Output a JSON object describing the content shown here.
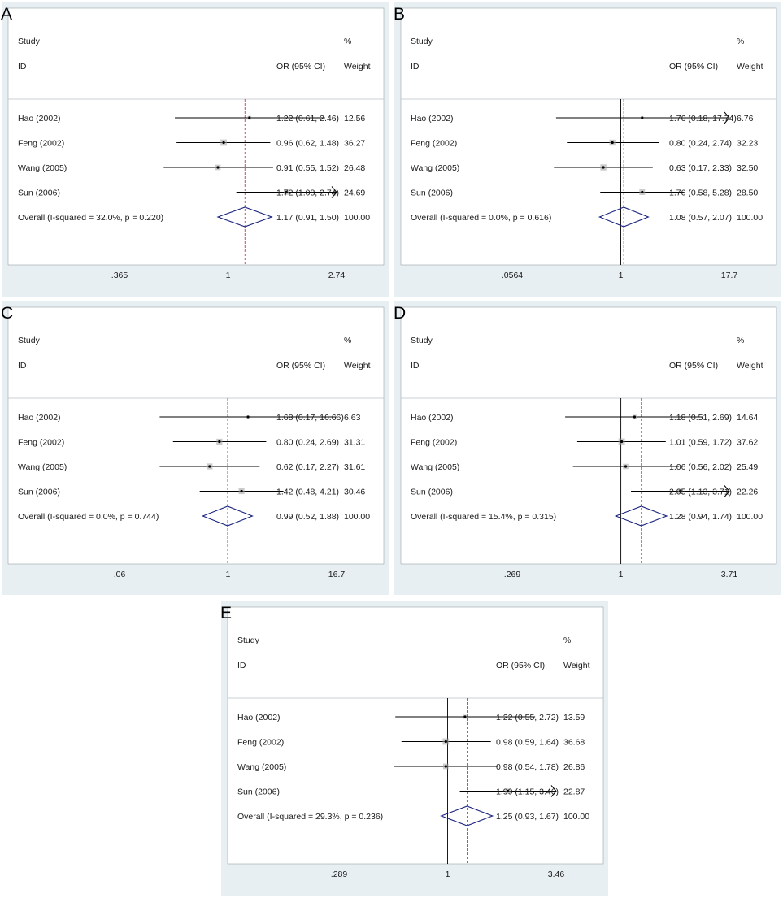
{
  "colors": {
    "panel_bg": "#e8eff2",
    "plot_bg": "#ffffff",
    "line": "#000000",
    "ref_line": "#c0506a",
    "diamond": "#1a237e",
    "box": "#a0a0a0"
  },
  "headers": {
    "study": "Study",
    "id": "ID",
    "or_ci": "OR (95% CI)",
    "pct": "%",
    "weight": "Weight"
  },
  "chart_data": [
    {
      "type": "forest",
      "label": "A",
      "xscale": "log",
      "xlim": [
        0.365,
        2.74
      ],
      "xticks": [
        ".365",
        "1",
        "2.74"
      ],
      "xtick_values": [
        0.365,
        1,
        2.74
      ],
      "studies": [
        {
          "name": "Hao (2002)",
          "or": 1.22,
          "lo": 0.61,
          "hi": 2.46,
          "text": "1.22 (0.61, 2.46)",
          "weight": "12.56",
          "w": 12.56
        },
        {
          "name": "Feng (2002)",
          "or": 0.96,
          "lo": 0.62,
          "hi": 1.48,
          "text": "0.96 (0.62, 1.48)",
          "weight": "36.27",
          "w": 36.27
        },
        {
          "name": "Wang (2005)",
          "or": 0.91,
          "lo": 0.55,
          "hi": 1.52,
          "text": "0.91 (0.55, 1.52)",
          "weight": "26.48",
          "w": 26.48
        },
        {
          "name": "Sun (2006)",
          "or": 1.72,
          "lo": 1.08,
          "hi": 2.74,
          "text": "1.72 (1.08, 2.74)",
          "weight": "24.69",
          "w": 24.69
        }
      ],
      "overall": {
        "label": "Overall  (I-squared = 32.0%, p = 0.220)",
        "or": 1.17,
        "lo": 0.91,
        "hi": 1.5,
        "text": "1.17 (0.91, 1.50)",
        "weight": "100.00"
      }
    },
    {
      "type": "forest",
      "label": "B",
      "xscale": "log",
      "xlim": [
        0.0564,
        17.7
      ],
      "xticks": [
        ".0564",
        "1",
        "17.7"
      ],
      "xtick_values": [
        0.0564,
        1,
        17.7
      ],
      "studies": [
        {
          "name": "Hao (2002)",
          "or": 1.76,
          "lo": 0.18,
          "hi": 17.74,
          "text": "1.76 (0.18, 17.74)",
          "weight": "6.76",
          "w": 6.76
        },
        {
          "name": "Feng (2002)",
          "or": 0.8,
          "lo": 0.24,
          "hi": 2.74,
          "text": "0.80 (0.24, 2.74)",
          "weight": "32.23",
          "w": 32.23
        },
        {
          "name": "Wang (2005)",
          "or": 0.63,
          "lo": 0.17,
          "hi": 2.33,
          "text": "0.63 (0.17, 2.33)",
          "weight": "32.50",
          "w": 32.5
        },
        {
          "name": "Sun (2006)",
          "or": 1.76,
          "lo": 0.58,
          "hi": 5.28,
          "text": "1.76 (0.58, 5.28)",
          "weight": "28.50",
          "w": 28.5
        }
      ],
      "overall": {
        "label": "Overall  (I-squared = 0.0%, p = 0.616)",
        "or": 1.08,
        "lo": 0.57,
        "hi": 2.07,
        "text": "1.08 (0.57, 2.07)",
        "weight": "100.00"
      }
    },
    {
      "type": "forest",
      "label": "C",
      "xscale": "log",
      "xlim": [
        0.06,
        16.7
      ],
      "xticks": [
        ".06",
        "1",
        "16.7"
      ],
      "xtick_values": [
        0.06,
        1,
        16.7
      ],
      "studies": [
        {
          "name": "Hao (2002)",
          "or": 1.68,
          "lo": 0.17,
          "hi": 16.66,
          "text": "1.68 (0.17, 16.66)",
          "weight": "6.63",
          "w": 6.63
        },
        {
          "name": "Feng (2002)",
          "or": 0.8,
          "lo": 0.24,
          "hi": 2.69,
          "text": "0.80 (0.24, 2.69)",
          "weight": "31.31",
          "w": 31.31
        },
        {
          "name": "Wang (2005)",
          "or": 0.62,
          "lo": 0.17,
          "hi": 2.27,
          "text": "0.62 (0.17, 2.27)",
          "weight": "31.61",
          "w": 31.61
        },
        {
          "name": "Sun (2006)",
          "or": 1.42,
          "lo": 0.48,
          "hi": 4.21,
          "text": "1.42 (0.48, 4.21)",
          "weight": "30.46",
          "w": 30.46
        }
      ],
      "overall": {
        "label": "Overall  (I-squared = 0.0%, p = 0.744)",
        "or": 0.99,
        "lo": 0.52,
        "hi": 1.88,
        "text": "0.99 (0.52, 1.88)",
        "weight": "100.00"
      }
    },
    {
      "type": "forest",
      "label": "D",
      "xscale": "log",
      "xlim": [
        0.269,
        3.71
      ],
      "xticks": [
        ".269",
        "1",
        "3.71"
      ],
      "xtick_values": [
        0.269,
        1,
        3.71
      ],
      "studies": [
        {
          "name": "Hao (2002)",
          "or": 1.18,
          "lo": 0.51,
          "hi": 2.69,
          "text": "1.18 (0.51, 2.69)",
          "weight": "14.64",
          "w": 14.64
        },
        {
          "name": "Feng (2002)",
          "or": 1.01,
          "lo": 0.59,
          "hi": 1.72,
          "text": "1.01 (0.59, 1.72)",
          "weight": "37.62",
          "w": 37.62
        },
        {
          "name": "Wang (2005)",
          "or": 1.06,
          "lo": 0.56,
          "hi": 2.02,
          "text": "1.06 (0.56, 2.02)",
          "weight": "25.49",
          "w": 25.49
        },
        {
          "name": "Sun (2006)",
          "or": 2.05,
          "lo": 1.13,
          "hi": 3.71,
          "text": "2.05 (1.13, 3.71)",
          "weight": "22.26",
          "w": 22.26
        }
      ],
      "overall": {
        "label": "Overall  (I-squared = 15.4%, p = 0.315)",
        "or": 1.28,
        "lo": 0.94,
        "hi": 1.74,
        "text": "1.28 (0.94, 1.74)",
        "weight": "100.00"
      }
    },
    {
      "type": "forest",
      "label": "E",
      "xscale": "log",
      "xlim": [
        0.289,
        3.46
      ],
      "xticks": [
        ".289",
        "1",
        "3.46"
      ],
      "xtick_values": [
        0.289,
        1,
        3.46
      ],
      "studies": [
        {
          "name": "Hao (2002)",
          "or": 1.22,
          "lo": 0.55,
          "hi": 2.72,
          "text": "1.22 (0.55, 2.72)",
          "weight": "13.59",
          "w": 13.59
        },
        {
          "name": "Feng (2002)",
          "or": 0.98,
          "lo": 0.59,
          "hi": 1.64,
          "text": "0.98 (0.59, 1.64)",
          "weight": "36.68",
          "w": 36.68
        },
        {
          "name": "Wang (2005)",
          "or": 0.98,
          "lo": 0.54,
          "hi": 1.78,
          "text": "0.98 (0.54, 1.78)",
          "weight": "26.86",
          "w": 26.86
        },
        {
          "name": "Sun (2006)",
          "or": 1.99,
          "lo": 1.15,
          "hi": 3.46,
          "text": "1.99 (1.15, 3.46)",
          "weight": "22.87",
          "w": 22.87
        }
      ],
      "overall": {
        "label": "Overall  (I-squared = 29.3%, p = 0.236)",
        "or": 1.25,
        "lo": 0.93,
        "hi": 1.67,
        "text": "1.25 (0.93, 1.67)",
        "weight": "100.00"
      }
    }
  ]
}
